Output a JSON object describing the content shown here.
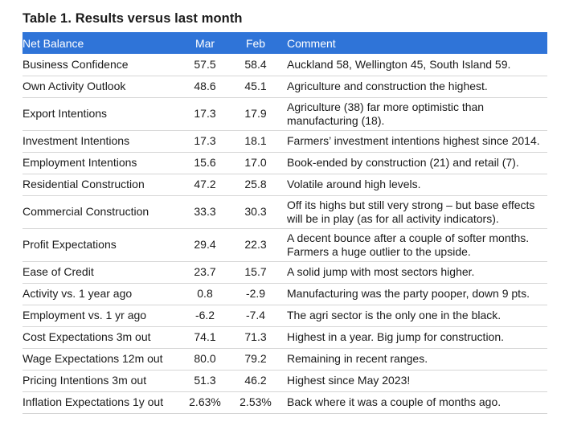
{
  "title": "Table 1. Results versus last month",
  "header": {
    "name": "Net Balance",
    "mar": "Mar",
    "feb": "Feb",
    "comment": "Comment"
  },
  "rows": [
    {
      "name": "Business Confidence",
      "mar": "57.5",
      "feb": "58.4",
      "comment": "Auckland 58, Wellington 45, South Island 59."
    },
    {
      "name": "Own Activity Outlook",
      "mar": "48.6",
      "feb": "45.1",
      "comment": "Agriculture and construction the highest."
    },
    {
      "name": "Export Intentions",
      "mar": "17.3",
      "feb": "17.9",
      "comment": "Agriculture (38) far more optimistic than manufacturing (18)."
    },
    {
      "name": "Investment Intentions",
      "mar": "17.3",
      "feb": "18.1",
      "comment": "Farmers’ investment intentions highest since 2014."
    },
    {
      "name": "Employment Intentions",
      "mar": "15.6",
      "feb": "17.0",
      "comment": "Book-ended by construction (21) and retail (7)."
    },
    {
      "name": "Residential Construction",
      "mar": "47.2",
      "feb": "25.8",
      "comment": "Volatile around high levels."
    },
    {
      "name": "Commercial Construction",
      "mar": "33.3",
      "feb": "30.3",
      "comment": "Off its highs but still very strong – but base effects will be in play (as for all activity indicators)."
    },
    {
      "name": "Profit Expectations",
      "mar": "29.4",
      "feb": "22.3",
      "comment": "A decent bounce after a couple of softer months. Farmers a huge outlier to the upside."
    },
    {
      "name": "Ease of Credit",
      "mar": "23.7",
      "feb": "15.7",
      "comment": "A solid jump with most sectors higher."
    },
    {
      "name": "Activity vs. 1 year ago",
      "mar": "0.8",
      "feb": "-2.9",
      "comment": "Manufacturing was the party pooper, down 9 pts."
    },
    {
      "name": "Employment vs. 1 yr ago",
      "mar": "-6.2",
      "feb": "-7.4",
      "comment": "The agri sector is the only one in the black."
    },
    {
      "name": "Cost Expectations 3m out",
      "mar": "74.1",
      "feb": "71.3",
      "comment": "Highest in a year. Big jump for construction."
    },
    {
      "name": "Wage Expectations 12m out",
      "mar": "80.0",
      "feb": "79.2",
      "comment": "Remaining in recent ranges."
    },
    {
      "name": "Pricing Intentions 3m out",
      "mar": "51.3",
      "feb": "46.2",
      "comment": "Highest since May 2023!"
    },
    {
      "name": "Inflation Expectations 1y out",
      "mar": "2.63%",
      "feb": "2.53%",
      "comment": "Back where it was a couple of months ago."
    }
  ],
  "colors": {
    "header_bg": "#2f74d8",
    "header_text": "#ffffff",
    "row_divider": "#d5d5d5",
    "text": "#1a1a1a"
  }
}
